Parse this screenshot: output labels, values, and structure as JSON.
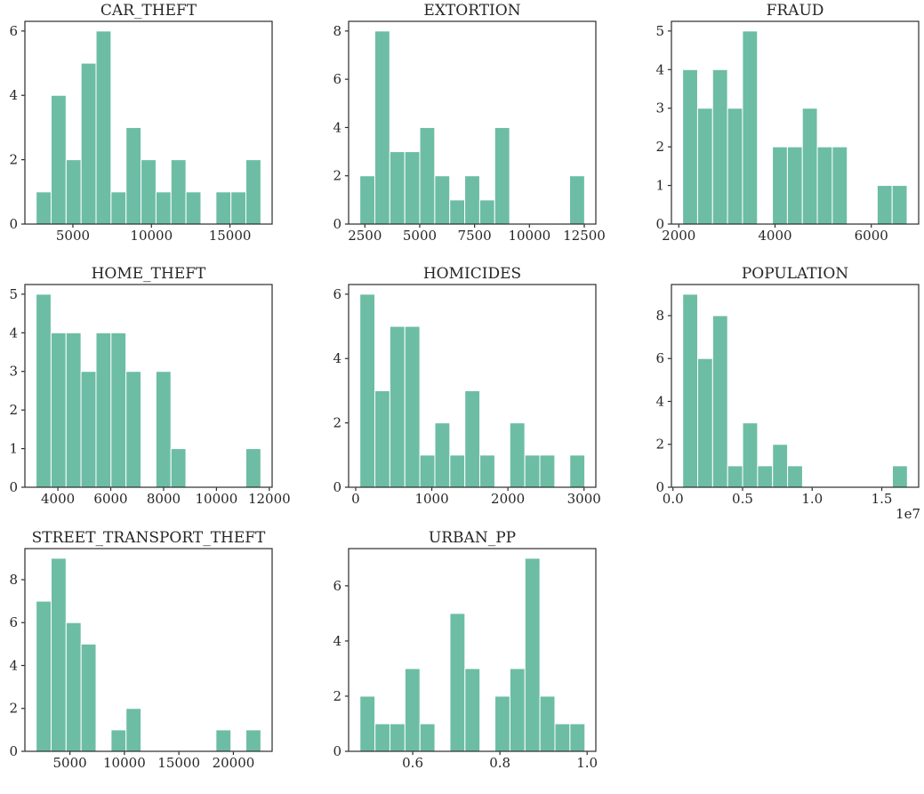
{
  "figure": {
    "background": "#ffffff",
    "bar_color": "#6cbda4",
    "bar_edge_color": "#ffffff",
    "axis_color": "#2b2b2b",
    "text_color": "#262626"
  },
  "chart_data": [
    {
      "type": "bar",
      "title": "CAR_THEFT",
      "xlabel": "",
      "ylabel": "",
      "bin_start": 2660,
      "bin_width": 954,
      "counts": [
        1,
        4,
        2,
        5,
        6,
        1,
        3,
        2,
        1,
        2,
        1,
        0,
        1,
        1,
        2
      ],
      "xlim": [
        1945,
        17685
      ],
      "ylim": [
        0,
        6.3
      ],
      "xticks": [
        5000,
        10000,
        15000
      ],
      "xtick_labels": [
        "5000",
        "10000",
        "15000"
      ],
      "yticks": [
        0,
        2,
        4,
        6
      ],
      "x_offset_label": "",
      "grid": false,
      "legend": false
    },
    {
      "type": "bar",
      "title": "EXTORTION",
      "xlabel": "",
      "ylabel": "",
      "bin_start": 2270,
      "bin_width": 683,
      "counts": [
        2,
        8,
        3,
        3,
        4,
        2,
        1,
        2,
        1,
        4,
        0,
        0,
        0,
        0,
        2
      ],
      "xlim": [
        1758,
        13027
      ],
      "ylim": [
        0,
        8.4
      ],
      "xticks": [
        2500,
        5000,
        7500,
        10000,
        12500
      ],
      "xtick_labels": [
        "2500",
        "5000",
        "7500",
        "10000",
        "12500"
      ],
      "yticks": [
        0,
        2,
        4,
        6,
        8
      ],
      "x_offset_label": "",
      "grid": false,
      "legend": false
    },
    {
      "type": "bar",
      "title": "FRAUD",
      "xlabel": "",
      "ylabel": "",
      "bin_start": 2080,
      "bin_width": 311,
      "counts": [
        4,
        3,
        4,
        3,
        5,
        0,
        2,
        2,
        3,
        2,
        2,
        0,
        0,
        1,
        1
      ],
      "xlim": [
        1847,
        6985
      ],
      "ylim": [
        0,
        5.25
      ],
      "xticks": [
        2000,
        4000,
        6000
      ],
      "xtick_labels": [
        "2000",
        "4000",
        "6000"
      ],
      "yticks": [
        0,
        1,
        2,
        3,
        4,
        5
      ],
      "x_offset_label": "",
      "grid": false,
      "legend": false
    },
    {
      "type": "bar",
      "title": "HOME_THEFT",
      "xlabel": "",
      "ylabel": "",
      "bin_start": 3175,
      "bin_width": 567,
      "counts": [
        5,
        4,
        4,
        3,
        4,
        4,
        3,
        0,
        3,
        1,
        0,
        0,
        0,
        0,
        1
      ],
      "xlim": [
        2752,
        12107
      ],
      "ylim": [
        0,
        5.25
      ],
      "xticks": [
        4000,
        6000,
        8000,
        10000,
        12000
      ],
      "xtick_labels": [
        "4000",
        "6000",
        "8000",
        "10000",
        "12000"
      ],
      "yticks": [
        0,
        1,
        2,
        3,
        4,
        5
      ],
      "x_offset_label": "",
      "grid": false,
      "legend": false
    },
    {
      "type": "bar",
      "title": "HOMICIDES",
      "xlabel": "",
      "ylabel": "",
      "bin_start": 55,
      "bin_width": 197,
      "counts": [
        6,
        3,
        5,
        5,
        1,
        2,
        1,
        3,
        1,
        0,
        2,
        1,
        1,
        0,
        1
      ],
      "xlim": [
        -93,
        3155
      ],
      "ylim": [
        0,
        6.3
      ],
      "xticks": [
        0,
        1000,
        2000,
        3000
      ],
      "xtick_labels": [
        "0",
        "1000",
        "2000",
        "3000"
      ],
      "yticks": [
        0,
        2,
        4,
        6
      ],
      "x_offset_label": "",
      "grid": false,
      "legend": false
    },
    {
      "type": "bar",
      "title": "POPULATION",
      "xlabel": "",
      "ylabel": "",
      "bin_start": 700000,
      "bin_width": 1076000,
      "counts": [
        9,
        6,
        8,
        1,
        3,
        1,
        2,
        1,
        0,
        0,
        0,
        0,
        0,
        0,
        1
      ],
      "xlim": [
        -110000,
        17650000
      ],
      "ylim": [
        0,
        9.45
      ],
      "xticks": [
        0,
        5000000,
        10000000,
        15000000
      ],
      "xtick_labels": [
        "0.0",
        "0.5",
        "1.0",
        "1.5"
      ],
      "yticks": [
        0,
        2,
        4,
        6,
        8
      ],
      "x_offset_label": "1e7",
      "grid": false,
      "legend": false
    },
    {
      "type": "bar",
      "title": "STREET_TRANSPORT_THEFT",
      "xlabel": "",
      "ylabel": "",
      "bin_start": 1900,
      "bin_width": 1375,
      "counts": [
        7,
        9,
        6,
        5,
        0,
        1,
        2,
        0,
        0,
        0,
        0,
        0,
        1,
        0,
        1
      ],
      "xlim": [
        869,
        23556
      ],
      "ylim": [
        0,
        9.45
      ],
      "xticks": [
        5000,
        10000,
        15000,
        20000
      ],
      "xtick_labels": [
        "5000",
        "10000",
        "15000",
        "20000"
      ],
      "yticks": [
        0,
        2,
        4,
        6,
        8
      ],
      "x_offset_label": "",
      "grid": false,
      "legend": false
    },
    {
      "type": "bar",
      "title": "URBAN_PP",
      "xlabel": "",
      "ylabel": "",
      "bin_start": 0.479,
      "bin_width": 0.0344,
      "counts": [
        2,
        1,
        1,
        3,
        1,
        0,
        5,
        3,
        0,
        2,
        3,
        7,
        2,
        1,
        1
      ],
      "xlim": [
        0.453,
        1.02
      ],
      "ylim": [
        0,
        7.35
      ],
      "xticks": [
        0.6,
        0.8,
        1.0
      ],
      "xtick_labels": [
        "0.6",
        "0.8",
        "1.0"
      ],
      "yticks": [
        0,
        2,
        4,
        6
      ],
      "x_offset_label": "",
      "grid": false,
      "legend": false
    }
  ]
}
